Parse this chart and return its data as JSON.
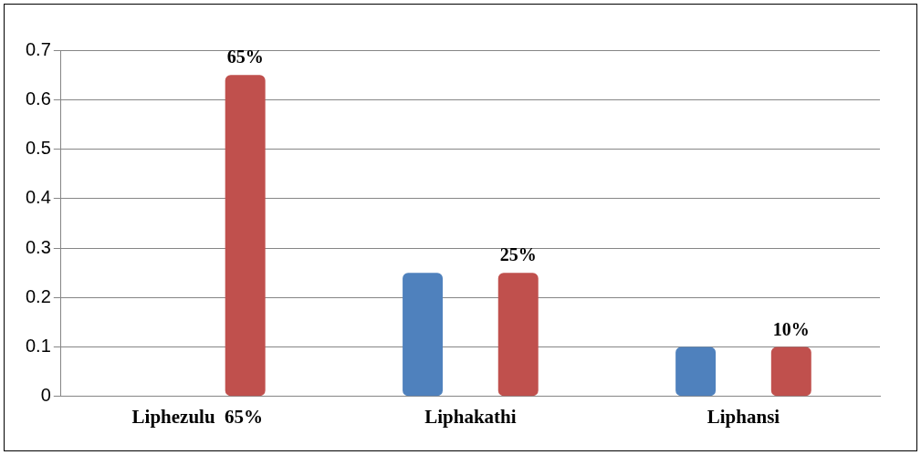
{
  "chart_data": {
    "type": "bar",
    "categories": [
      "Liphezulu  65%",
      "Liphakathi",
      "Liphansi"
    ],
    "series": [
      {
        "color": "#4f81bd",
        "values": [
          0,
          0.25,
          0.1
        ]
      },
      {
        "color": "#c0504d",
        "values": [
          0.65,
          0.25,
          0.1
        ],
        "value_labels": [
          "65%",
          "25%",
          "10%"
        ]
      }
    ],
    "ylim": [
      0,
      0.7
    ],
    "yticks": [
      0,
      0.1,
      0.2,
      0.3,
      0.4,
      0.5,
      0.6,
      0.7
    ],
    "grid": "y",
    "legend": false
  }
}
